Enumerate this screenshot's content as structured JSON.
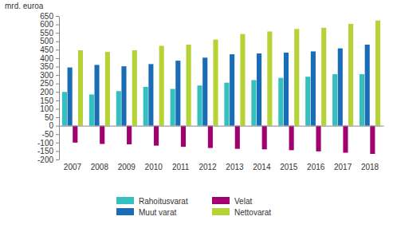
{
  "chart_data": {
    "type": "bar",
    "y_label": "mrd. euroa",
    "categories": [
      "2007",
      "2008",
      "2009",
      "2010",
      "2011",
      "2012",
      "2013",
      "2014",
      "2015",
      "2016",
      "2017",
      "2018"
    ],
    "series": [
      {
        "name": "Rahoitusvarat",
        "color": "#33c0bf",
        "values": [
          200,
          185,
          205,
          230,
          218,
          238,
          255,
          270,
          283,
          290,
          305,
          305
        ]
      },
      {
        "name": "Muut varat",
        "color": "#1a6db5",
        "values": [
          345,
          360,
          352,
          365,
          385,
          403,
          423,
          428,
          433,
          440,
          458,
          480
        ]
      },
      {
        "name": "Velat",
        "color": "#a1006e",
        "values": [
          -100,
          -108,
          -110,
          -118,
          -125,
          -132,
          -137,
          -140,
          -145,
          -152,
          -160,
          -167
        ]
      },
      {
        "name": "Nettovarat",
        "color": "#b5d334",
        "values": [
          447,
          437,
          447,
          473,
          480,
          510,
          543,
          558,
          573,
          580,
          603,
          623
        ]
      }
    ],
    "ylim": [
      -200,
      650
    ],
    "yticks": [
      -200,
      -150,
      -100,
      -50,
      0,
      50,
      100,
      150,
      200,
      250,
      300,
      350,
      400,
      450,
      500,
      550,
      600,
      650
    ],
    "grid": false,
    "legend": "bottom"
  }
}
